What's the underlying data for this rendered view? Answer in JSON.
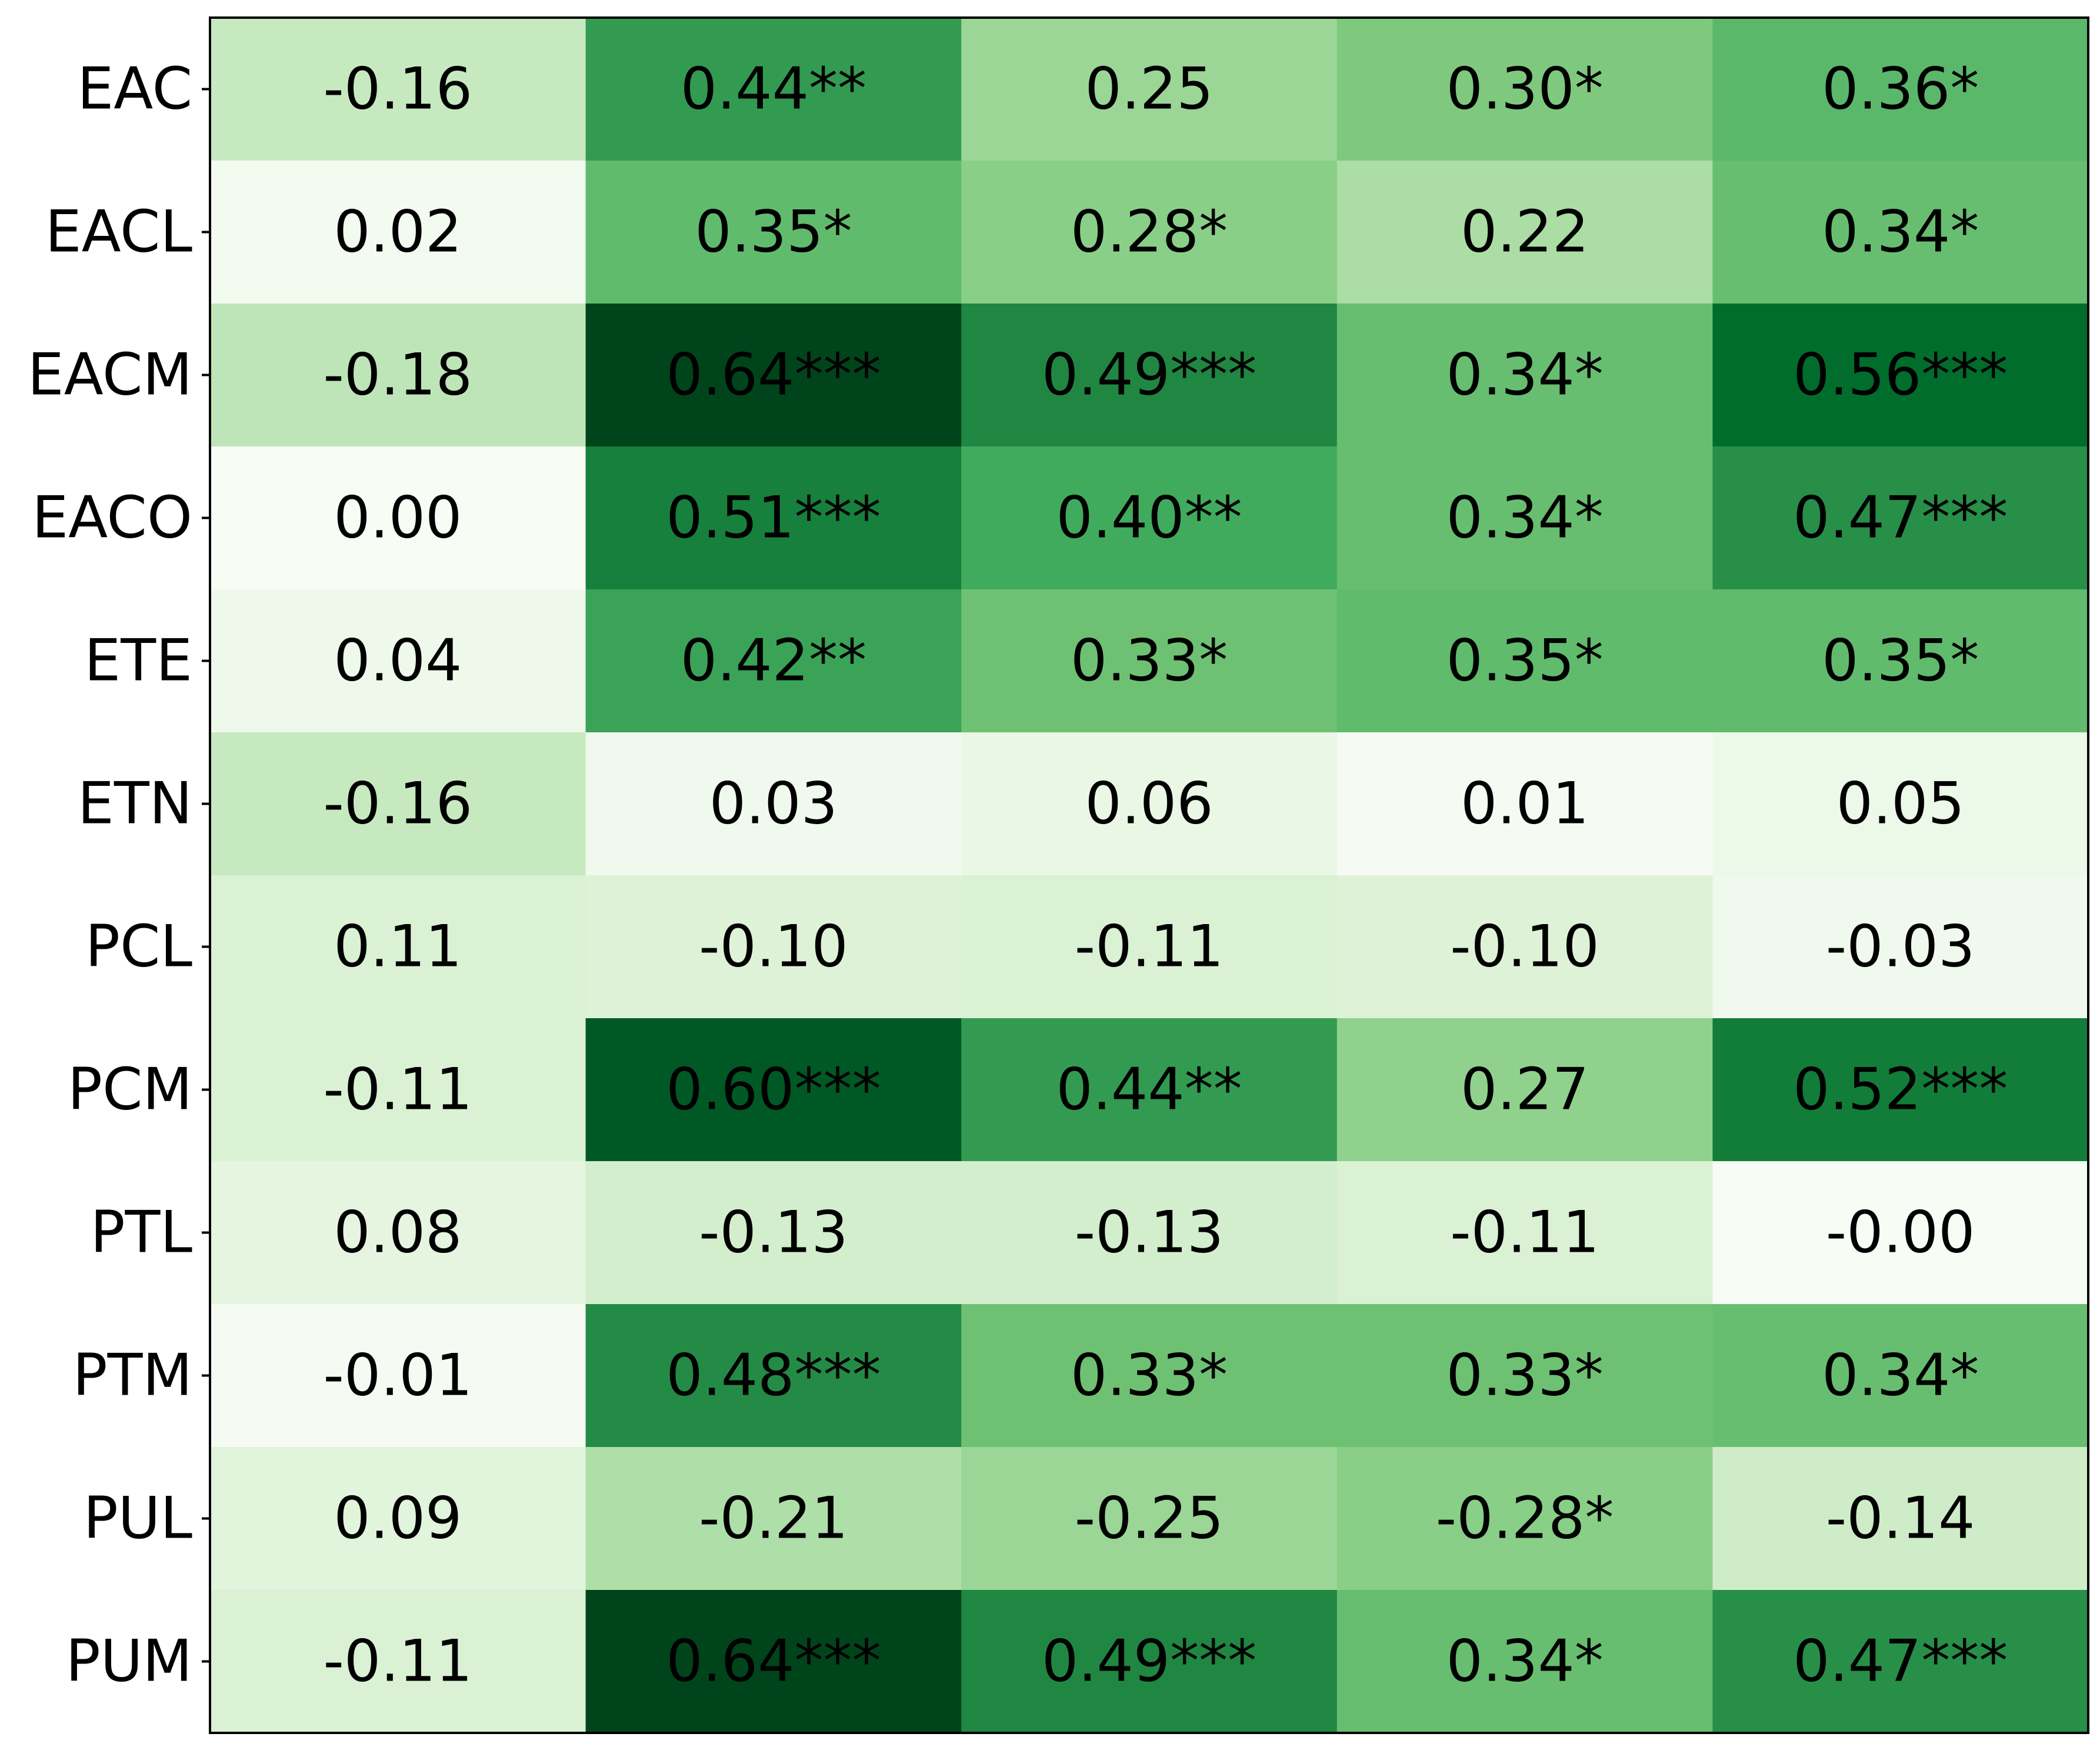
{
  "chart_data": {
    "type": "heatmap",
    "colormap": "Greens",
    "vmin": -0.28,
    "vmax": 0.64,
    "rows": [
      "EAC",
      "EACL",
      "EACM",
      "EACO",
      "ETE",
      "ETN",
      "PCL",
      "PCM",
      "PTL",
      "PTM",
      "PUL",
      "PUM"
    ],
    "columns": [],
    "values": [
      [
        -0.16,
        0.44,
        0.25,
        0.3,
        0.36
      ],
      [
        0.02,
        0.35,
        0.28,
        0.22,
        0.34
      ],
      [
        -0.18,
        0.64,
        0.49,
        0.34,
        0.56
      ],
      [
        0.0,
        0.51,
        0.4,
        0.34,
        0.47
      ],
      [
        0.04,
        0.42,
        0.33,
        0.35,
        0.35
      ],
      [
        -0.16,
        0.03,
        0.06,
        0.01,
        0.05
      ],
      [
        0.11,
        -0.1,
        -0.11,
        -0.1,
        -0.03
      ],
      [
        -0.11,
        0.6,
        0.44,
        0.27,
        0.52
      ],
      [
        0.08,
        -0.13,
        -0.13,
        -0.11,
        -0.0
      ],
      [
        -0.01,
        0.48,
        0.33,
        0.33,
        0.34
      ],
      [
        0.09,
        -0.21,
        -0.25,
        -0.28,
        -0.14
      ],
      [
        -0.11,
        0.64,
        0.49,
        0.34,
        0.47
      ]
    ],
    "labels": [
      [
        "-0.16",
        "0.44**",
        "0.25",
        "0.30*",
        "0.36*"
      ],
      [
        "0.02",
        "0.35*",
        "0.28*",
        "0.22",
        "0.34*"
      ],
      [
        "-0.18",
        "0.64***",
        "0.49***",
        "0.34*",
        "0.56***"
      ],
      [
        "0.00",
        "0.51***",
        "0.40**",
        "0.34*",
        "0.47***"
      ],
      [
        "0.04",
        "0.42**",
        "0.33*",
        "0.35*",
        "0.35*"
      ],
      [
        "-0.16",
        "0.03",
        "0.06",
        "0.01",
        "0.05"
      ],
      [
        "0.11",
        "-0.10",
        "-0.11",
        "-0.10",
        "-0.03"
      ],
      [
        "-0.11",
        "0.60***",
        "0.44**",
        "0.27",
        "0.52***"
      ],
      [
        "0.08",
        "-0.13",
        "-0.13",
        "-0.11",
        "-0.00"
      ],
      [
        "-0.01",
        "0.48***",
        "0.33*",
        "0.33*",
        "0.34*"
      ],
      [
        "0.09",
        "-0.21",
        "-0.25",
        "-0.28*",
        "-0.14"
      ],
      [
        "-0.11",
        "0.64***",
        "0.49***",
        "0.34*",
        "0.47***"
      ]
    ]
  }
}
